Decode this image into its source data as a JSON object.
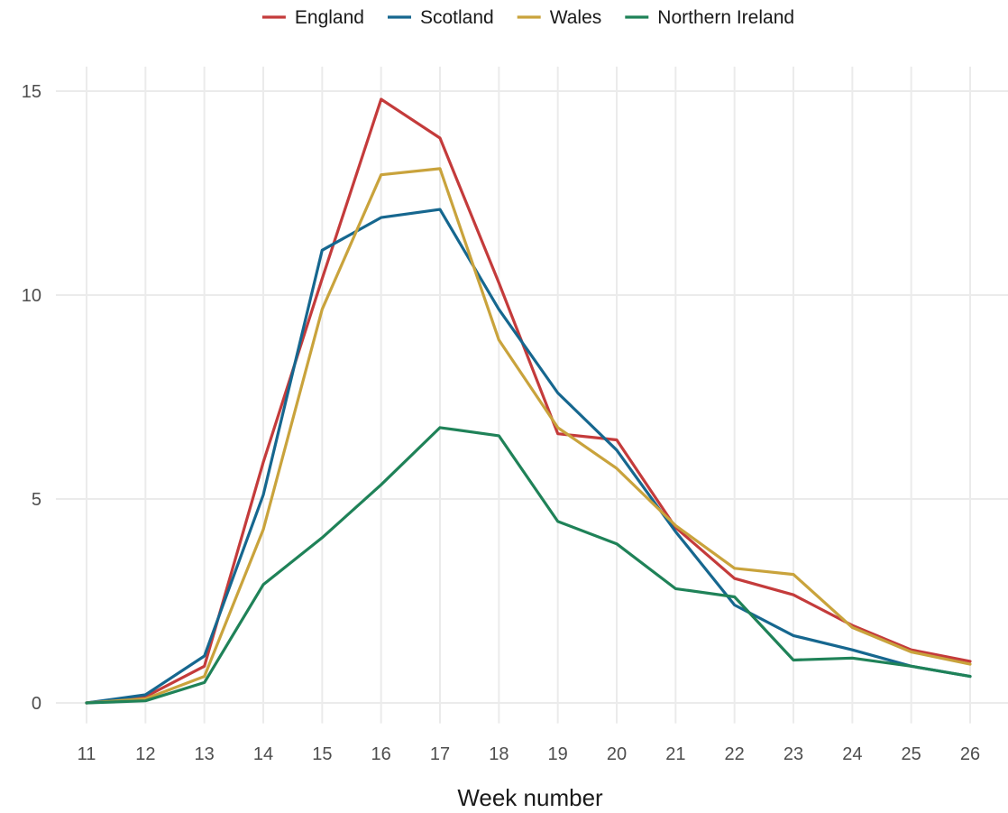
{
  "chart_data": {
    "type": "line",
    "title": "",
    "xlabel": "Week number",
    "ylabel": "",
    "x": [
      11,
      12,
      13,
      14,
      15,
      16,
      17,
      18,
      19,
      20,
      21,
      22,
      23,
      24,
      25,
      26
    ],
    "xlim": [
      11,
      26
    ],
    "ylim": [
      -0.5,
      15.6
    ],
    "y_ticks": [
      0,
      5,
      10,
      15
    ],
    "grid": true,
    "legend_position": "top",
    "series": [
      {
        "name": "England",
        "color": "#c43b3b",
        "values": [
          0.0,
          0.15,
          0.9,
          5.9,
          10.4,
          14.8,
          13.85,
          10.3,
          6.6,
          6.45,
          4.3,
          3.05,
          2.65,
          1.9,
          1.3,
          1.02
        ]
      },
      {
        "name": "Scotland",
        "color": "#16678f",
        "values": [
          0.0,
          0.2,
          1.15,
          5.1,
          11.1,
          11.9,
          12.1,
          9.65,
          7.6,
          6.2,
          4.2,
          2.4,
          1.65,
          1.3,
          0.9,
          0.65
        ]
      },
      {
        "name": "Wales",
        "color": "#c9a33c",
        "values": [
          0.0,
          0.1,
          0.65,
          4.25,
          9.65,
          12.95,
          13.1,
          8.9,
          6.75,
          5.75,
          4.35,
          3.3,
          3.15,
          1.85,
          1.25,
          0.95
        ]
      },
      {
        "name": "Northern Ireland",
        "color": "#1f8258",
        "values": [
          0.0,
          0.05,
          0.5,
          2.9,
          4.05,
          5.35,
          6.75,
          6.55,
          4.45,
          3.9,
          2.8,
          2.6,
          1.05,
          1.1,
          0.9,
          0.65
        ]
      }
    ]
  }
}
